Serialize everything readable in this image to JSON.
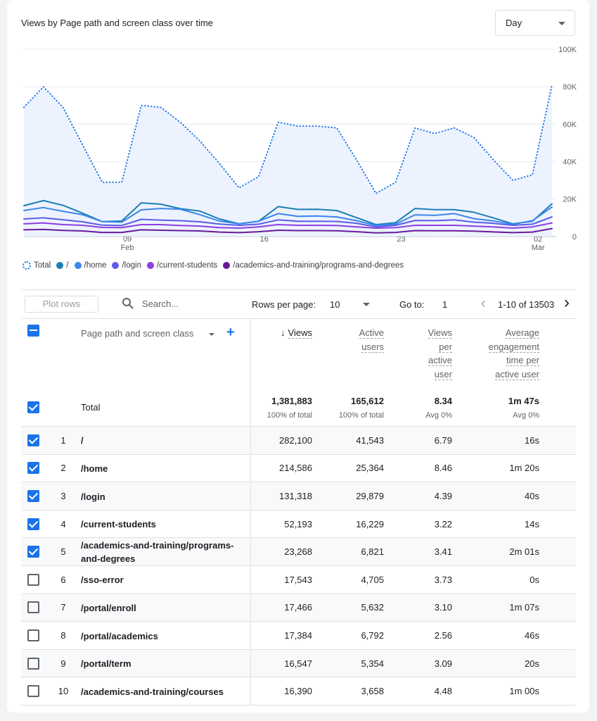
{
  "header": {
    "title": "Views by Page path and screen class over time",
    "dropdown": "Day"
  },
  "chart_data": {
    "type": "line",
    "categories": [
      null,
      null,
      null,
      null,
      null,
      [
        "09",
        "Feb"
      ],
      null,
      null,
      null,
      null,
      null,
      null,
      "16",
      null,
      null,
      null,
      null,
      null,
      null,
      "23",
      null,
      null,
      null,
      null,
      null,
      null,
      [
        "02",
        "Mar"
      ],
      null
    ],
    "series": [
      {
        "name": "Total",
        "color": "#1a73e8",
        "style": "dotted",
        "area": true,
        "values": [
          69000,
          80000,
          69000,
          49000,
          29000,
          29000,
          70000,
          69000,
          61000,
          51000,
          39000,
          26000,
          32000,
          61000,
          59000,
          59000,
          58000,
          41000,
          23000,
          29000,
          58000,
          55000,
          58000,
          53000,
          41000,
          30000,
          33000,
          81000
        ]
      },
      {
        "name": "/",
        "color": "#1b7fb5",
        "values": [
          16500,
          19200,
          16700,
          12500,
          8000,
          8300,
          18000,
          17300,
          14900,
          13600,
          9400,
          6800,
          8200,
          16000,
          14500,
          14600,
          13900,
          10100,
          6400,
          7400,
          15000,
          14400,
          14400,
          13000,
          10000,
          6800,
          8200,
          17500
        ]
      },
      {
        "name": "/home",
        "color": "#3c86ec",
        "values": [
          13900,
          15500,
          13500,
          11700,
          8000,
          7700,
          14300,
          15000,
          14600,
          11700,
          8300,
          6800,
          8200,
          12300,
          10800,
          11000,
          10500,
          8500,
          5900,
          6600,
          11600,
          11300,
          12300,
          9600,
          8400,
          6500,
          8500,
          15800
        ]
      },
      {
        "name": "/login",
        "color": "#5c5ce6",
        "values": [
          9400,
          10000,
          9000,
          7900,
          6100,
          5900,
          9200,
          8800,
          8500,
          7900,
          6700,
          6000,
          6600,
          8900,
          8200,
          8200,
          8100,
          7100,
          5200,
          6000,
          8600,
          8500,
          8900,
          7700,
          7100,
          6000,
          6600,
          10500
        ]
      },
      {
        "name": "/current-students",
        "color": "#8d3fe0",
        "values": [
          6800,
          7300,
          6400,
          6000,
          4900,
          4800,
          6400,
          6400,
          5900,
          5600,
          4800,
          4500,
          5200,
          6400,
          6000,
          6000,
          5900,
          5200,
          4500,
          4800,
          6000,
          6000,
          6000,
          5600,
          5200,
          4500,
          5200,
          7300
        ]
      },
      {
        "name": "/academics-and-training/programs-and-degrees",
        "color": "#6a1b9a",
        "values": [
          3600,
          3800,
          3300,
          3000,
          2200,
          2200,
          3600,
          3400,
          3200,
          3000,
          2400,
          2100,
          2600,
          3400,
          3200,
          3200,
          3100,
          2600,
          2000,
          2200,
          3200,
          3100,
          3100,
          2900,
          2500,
          2100,
          2400,
          4300
        ]
      }
    ],
    "ylim": [
      0,
      100000
    ],
    "yticks": [
      0,
      {
        "value": 20000,
        "label": "20K"
      },
      {
        "value": 40000,
        "label": "40K"
      },
      {
        "value": 60000,
        "label": "60K"
      },
      {
        "value": 80000,
        "label": "80K"
      },
      {
        "value": 100000,
        "label": "100K"
      }
    ],
    "grid": true,
    "y_axis_side": "right"
  },
  "toolbar": {
    "plot_rows": "Plot rows",
    "search": "Search...",
    "rows_per_page_label": "Rows per page:",
    "rows_per_page": "10",
    "go_to_label": "Go to:",
    "go_to": "1",
    "range": "1-10 of 13503"
  },
  "table": {
    "header_checkbox": "indeterminate",
    "columns": [
      "Page path and screen class",
      "Views",
      "Active users",
      "Views per active user",
      "Average engagement time per active user"
    ],
    "total": {
      "checked": true,
      "label": "Total",
      "cells": [
        {
          "value": "1,381,883",
          "note": "100% of total"
        },
        {
          "value": "165,612",
          "note": "100% of total"
        },
        {
          "value": "8.34",
          "note": "Avg 0%"
        },
        {
          "value": "1m 47s",
          "note": "Avg 0%"
        }
      ]
    },
    "rows": [
      {
        "checked": true,
        "rank": "1",
        "path": "/",
        "cells": [
          "282,100",
          "41,543",
          "6.79",
          "16s"
        ]
      },
      {
        "checked": true,
        "rank": "2",
        "path": "/home",
        "cells": [
          "214,586",
          "25,364",
          "8.46",
          "1m 20s"
        ]
      },
      {
        "checked": true,
        "rank": "3",
        "path": "/login",
        "cells": [
          "131,318",
          "29,879",
          "4.39",
          "40s"
        ]
      },
      {
        "checked": true,
        "rank": "4",
        "path": "/current-students",
        "cells": [
          "52,193",
          "16,229",
          "3.22",
          "14s"
        ]
      },
      {
        "checked": true,
        "rank": "5",
        "path": "/academics-and-training/programs-and-degrees",
        "cells": [
          "23,268",
          "6,821",
          "3.41",
          "2m 01s"
        ]
      },
      {
        "checked": false,
        "rank": "6",
        "path": "/sso-error",
        "cells": [
          "17,543",
          "4,705",
          "3.73",
          "0s"
        ]
      },
      {
        "checked": false,
        "rank": "7",
        "path": "/portal/enroll",
        "cells": [
          "17,466",
          "5,632",
          "3.10",
          "1m 07s"
        ]
      },
      {
        "checked": false,
        "rank": "8",
        "path": "/portal/academics",
        "cells": [
          "17,384",
          "6,792",
          "2.56",
          "46s"
        ]
      },
      {
        "checked": false,
        "rank": "9",
        "path": "/portal/term",
        "cells": [
          "16,547",
          "5,354",
          "3.09",
          "20s"
        ]
      },
      {
        "checked": false,
        "rank": "10",
        "path": "/academics-and-training/courses",
        "cells": [
          "16,390",
          "3,658",
          "4.48",
          "1m 00s"
        ]
      }
    ]
  }
}
